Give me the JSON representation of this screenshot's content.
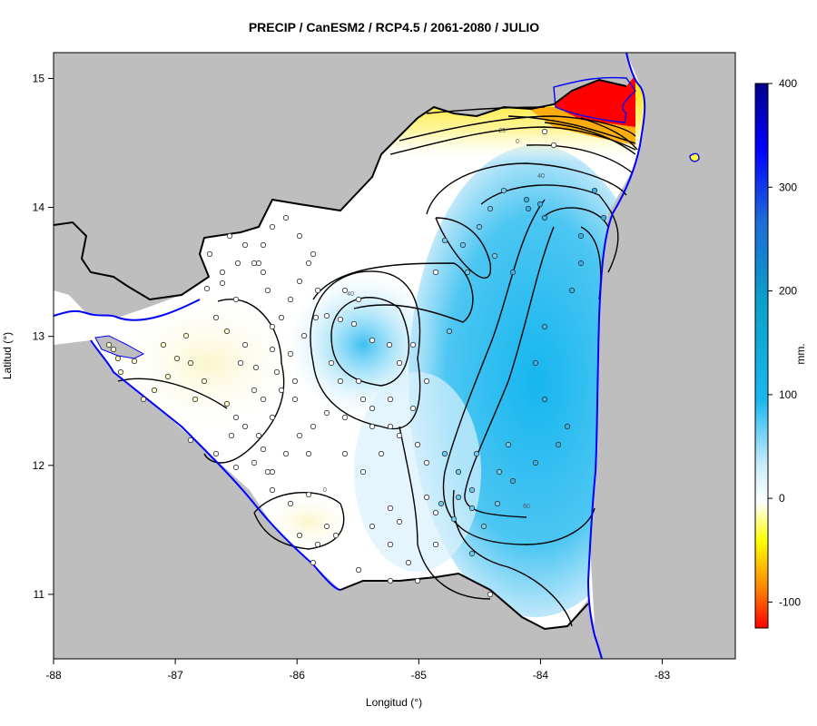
{
  "title": "PRECIP / CanESM2 / RCP4.5 / 2061-2080 / JULIO",
  "x_axis": {
    "label": "Longitud (°)",
    "ticks": [
      "-88",
      "-87",
      "-86",
      "-85",
      "-84",
      "-83"
    ],
    "tick_values": [
      -88,
      -87,
      -86,
      -85,
      -84,
      -83
    ],
    "range": [
      -88,
      -82.4
    ]
  },
  "y_axis": {
    "label": "Latitud (°)",
    "ticks": [
      "11",
      "12",
      "13",
      "14",
      "15"
    ],
    "tick_values": [
      11,
      12,
      13,
      14,
      15
    ],
    "range": [
      10.5,
      15.2
    ]
  },
  "colorbar": {
    "unit_label": "mm.",
    "ticks": [
      "400",
      "300",
      "200",
      "100",
      "0",
      "-100"
    ],
    "tick_values": [
      400,
      300,
      200,
      100,
      0,
      -100
    ],
    "range": [
      -125,
      400
    ]
  },
  "contour_labels": [
    "-20",
    "0",
    "40",
    "40",
    "0",
    "60"
  ],
  "colors": {
    "land_outside": "#bebebe",
    "coast": "#0000ff",
    "border": "#000000",
    "wet": "#1ab8f0",
    "dry": "#ffff30",
    "extreme_dry": "#ff0000"
  }
}
